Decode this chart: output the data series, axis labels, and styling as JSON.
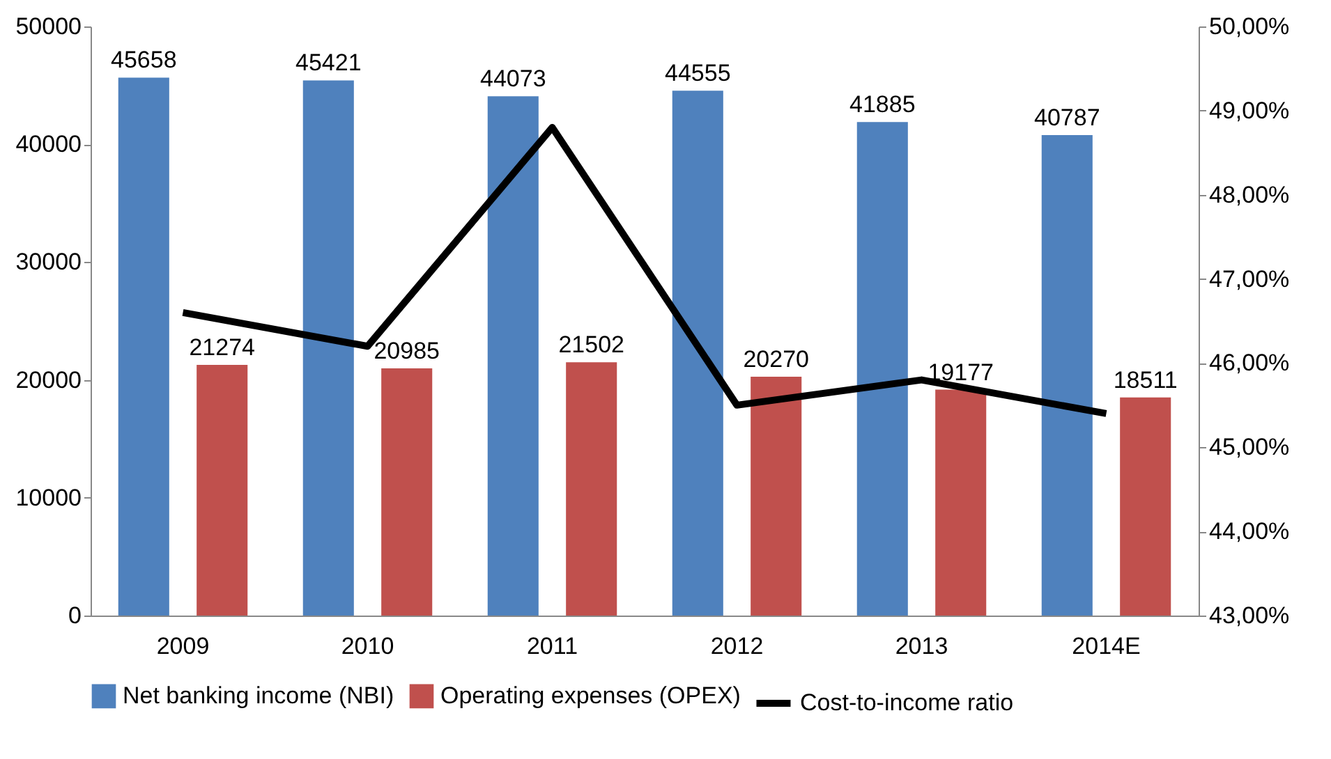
{
  "chart_data": {
    "type": "bar",
    "categories": [
      "2009",
      "2010",
      "2011",
      "2012",
      "2013",
      "2014E"
    ],
    "series": [
      {
        "name": "Net banking income (NBI)",
        "color": "#4f81bd",
        "values": [
          45658,
          45421,
          44073,
          44555,
          41885,
          40787
        ],
        "value_labels": [
          "45658",
          "45421",
          "44073",
          "44555",
          "41885",
          "40787"
        ]
      },
      {
        "name": "Operating expenses (OPEX)",
        "color": "#c0504d",
        "values": [
          21274,
          20985,
          21502,
          20270,
          19177,
          18511
        ],
        "value_labels": [
          "21274",
          "20985",
          "21502",
          "20270",
          "19177",
          "18511"
        ]
      },
      {
        "name": "Cost-to-income ratio",
        "color": "#000000",
        "type": "line",
        "axis": "y2",
        "values": [
          46.6,
          46.2,
          48.8,
          45.5,
          45.8,
          45.4
        ]
      }
    ],
    "ylim": [
      0,
      50000
    ],
    "yticks": [
      0,
      10000,
      20000,
      30000,
      40000,
      50000
    ],
    "y2lim": [
      43,
      50
    ],
    "y2ticks": [
      {
        "value": 43,
        "label": "43,00%"
      },
      {
        "value": 44,
        "label": "44,00%"
      },
      {
        "value": 45,
        "label": "45,00%"
      },
      {
        "value": 46,
        "label": "46,00%"
      },
      {
        "value": 47,
        "label": "47,00%"
      },
      {
        "value": 48,
        "label": "48,00%"
      },
      {
        "value": 49,
        "label": "49,00%"
      },
      {
        "value": 50,
        "label": "50,00%"
      }
    ],
    "grid": false,
    "legend": "bottom"
  }
}
